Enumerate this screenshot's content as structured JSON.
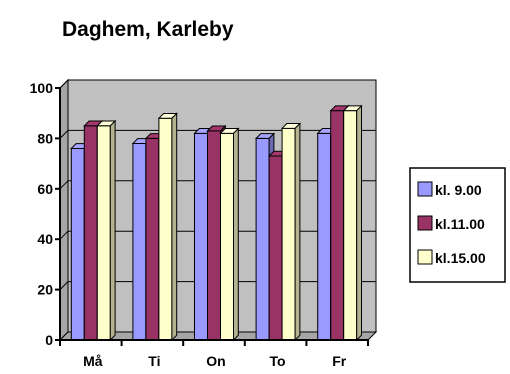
{
  "chart_data": {
    "type": "bar",
    "title": "Daghem, Karleby",
    "categories": [
      "Må",
      "Ti",
      "On",
      "To",
      "Fr"
    ],
    "series": [
      {
        "name": "kl. 9.00",
        "color": "#9999ff",
        "values": [
          76,
          78,
          82,
          80,
          82
        ]
      },
      {
        "name": "kl.11.00",
        "color": "#993366",
        "values": [
          85,
          80,
          83,
          73,
          91
        ]
      },
      {
        "name": "kl.15.00",
        "color": "#ffffcc",
        "values": [
          85,
          88,
          82,
          84,
          91
        ]
      }
    ],
    "ylim": [
      0,
      100
    ],
    "yticks": [
      0,
      20,
      40,
      60,
      80,
      100
    ],
    "grid": true,
    "plot_background": "#c0c0c0",
    "legend": "right",
    "style": "3d-clustered-column"
  }
}
